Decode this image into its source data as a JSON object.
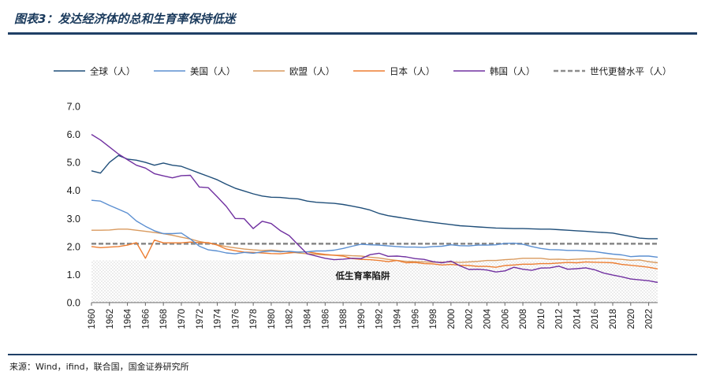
{
  "header": {
    "title": "图表3：发达经济体的总和生育率保持低迷"
  },
  "footer": {
    "source": "来源：Wind，ifind，联合国，国金证券研究所"
  },
  "chart_data": {
    "type": "line",
    "title": "图表3：发达经济体的总和生育率保持低迷",
    "ylim": [
      0,
      7
    ],
    "yticks": [
      "0.0",
      "1.0",
      "2.0",
      "3.0",
      "4.0",
      "5.0",
      "6.0",
      "7.0"
    ],
    "xticks": [
      "1960",
      "1962",
      "1964",
      "1966",
      "1968",
      "1970",
      "1972",
      "1974",
      "1976",
      "1978",
      "1980",
      "1982",
      "1984",
      "1986",
      "1988",
      "1990",
      "1992",
      "1994",
      "1996",
      "1998",
      "2000",
      "2002",
      "2004",
      "2006",
      "2008",
      "2010",
      "2012",
      "2014",
      "2016",
      "2018",
      "2020",
      "2022"
    ],
    "x_start": 1960,
    "x_end": 2023,
    "zone_label": "低生育率陷阱",
    "zone_range": [
      0,
      1.5
    ],
    "colors": {
      "world": "#1f4e79",
      "usa": "#5b8fd1",
      "eu": "#d99a5e",
      "japan": "#ed7d31",
      "korea": "#7030a0",
      "replacement": "#8c8c8c"
    },
    "series": [
      {
        "key": "world",
        "name": "全球（人）",
        "color": "#1f4e79",
        "dashed": false,
        "values": [
          4.7,
          4.62,
          5.0,
          5.25,
          5.12,
          5.08,
          5.0,
          4.9,
          4.98,
          4.9,
          4.86,
          4.74,
          4.62,
          4.5,
          4.38,
          4.22,
          4.08,
          3.98,
          3.88,
          3.8,
          3.76,
          3.75,
          3.72,
          3.7,
          3.62,
          3.58,
          3.56,
          3.54,
          3.5,
          3.44,
          3.38,
          3.3,
          3.18,
          3.1,
          3.05,
          3.0,
          2.95,
          2.9,
          2.86,
          2.82,
          2.78,
          2.74,
          2.72,
          2.7,
          2.68,
          2.66,
          2.65,
          2.64,
          2.64,
          2.63,
          2.62,
          2.62,
          2.6,
          2.58,
          2.56,
          2.54,
          2.52,
          2.5,
          2.48,
          2.42,
          2.36,
          2.3,
          2.28,
          2.28
        ]
      },
      {
        "key": "usa",
        "name": "美国（人）",
        "color": "#5b8fd1",
        "dashed": false,
        "values": [
          3.65,
          3.62,
          3.47,
          3.33,
          3.19,
          2.91,
          2.72,
          2.56,
          2.46,
          2.46,
          2.48,
          2.27,
          2.01,
          1.88,
          1.84,
          1.77,
          1.74,
          1.79,
          1.76,
          1.81,
          1.84,
          1.81,
          1.83,
          1.8,
          1.81,
          1.84,
          1.84,
          1.87,
          1.93,
          2.01,
          2.08,
          2.06,
          2.05,
          2.02,
          2.0,
          1.98,
          1.98,
          1.97,
          2.0,
          2.01,
          2.06,
          2.03,
          2.02,
          2.05,
          2.05,
          2.06,
          2.11,
          2.12,
          2.08,
          2.0,
          1.93,
          1.89,
          1.88,
          1.86,
          1.86,
          1.84,
          1.82,
          1.77,
          1.73,
          1.7,
          1.64,
          1.66,
          1.66,
          1.62
        ]
      },
      {
        "key": "eu",
        "name": "欧盟（人）",
        "color": "#d99a5e",
        "dashed": false,
        "values": [
          2.58,
          2.58,
          2.59,
          2.62,
          2.62,
          2.58,
          2.54,
          2.5,
          2.46,
          2.4,
          2.33,
          2.27,
          2.18,
          2.12,
          2.06,
          2.0,
          1.95,
          1.91,
          1.88,
          1.86,
          1.87,
          1.84,
          1.81,
          1.77,
          1.74,
          1.72,
          1.7,
          1.69,
          1.69,
          1.67,
          1.66,
          1.62,
          1.59,
          1.54,
          1.5,
          1.47,
          1.46,
          1.45,
          1.44,
          1.44,
          1.45,
          1.43,
          1.45,
          1.47,
          1.5,
          1.5,
          1.53,
          1.55,
          1.58,
          1.58,
          1.58,
          1.54,
          1.55,
          1.53,
          1.55,
          1.56,
          1.56,
          1.58,
          1.56,
          1.54,
          1.51,
          1.52,
          1.46,
          1.42
        ]
      },
      {
        "key": "japan",
        "name": "日本（人）",
        "color": "#ed7d31",
        "dashed": false,
        "values": [
          2.0,
          1.96,
          1.98,
          2.0,
          2.05,
          2.14,
          1.58,
          2.23,
          2.13,
          2.13,
          2.13,
          2.16,
          2.14,
          2.14,
          2.05,
          1.91,
          1.85,
          1.8,
          1.79,
          1.77,
          1.75,
          1.74,
          1.77,
          1.8,
          1.81,
          1.76,
          1.72,
          1.69,
          1.66,
          1.57,
          1.54,
          1.53,
          1.5,
          1.46,
          1.5,
          1.42,
          1.43,
          1.39,
          1.38,
          1.34,
          1.36,
          1.33,
          1.32,
          1.29,
          1.29,
          1.26,
          1.32,
          1.34,
          1.37,
          1.37,
          1.39,
          1.39,
          1.41,
          1.43,
          1.42,
          1.45,
          1.44,
          1.43,
          1.42,
          1.36,
          1.33,
          1.3,
          1.26,
          1.2
        ]
      },
      {
        "key": "korea",
        "name": "韩国（人）",
        "color": "#7030a0",
        "dashed": false,
        "values": [
          6.0,
          5.8,
          5.55,
          5.3,
          5.1,
          4.9,
          4.8,
          4.6,
          4.52,
          4.45,
          4.53,
          4.54,
          4.12,
          4.1,
          3.77,
          3.43,
          3.0,
          2.99,
          2.64,
          2.9,
          2.82,
          2.57,
          2.39,
          2.06,
          1.74,
          1.66,
          1.58,
          1.53,
          1.55,
          1.58,
          1.57,
          1.71,
          1.76,
          1.65,
          1.66,
          1.63,
          1.57,
          1.54,
          1.46,
          1.42,
          1.48,
          1.31,
          1.18,
          1.19,
          1.16,
          1.09,
          1.13,
          1.26,
          1.19,
          1.15,
          1.23,
          1.24,
          1.3,
          1.19,
          1.21,
          1.24,
          1.17,
          1.05,
          0.98,
          0.92,
          0.84,
          0.81,
          0.78,
          0.72
        ]
      },
      {
        "key": "replacement",
        "name": "世代更替水平（人）",
        "color": "#8c8c8c",
        "dashed": true,
        "constant": 2.1
      }
    ]
  }
}
